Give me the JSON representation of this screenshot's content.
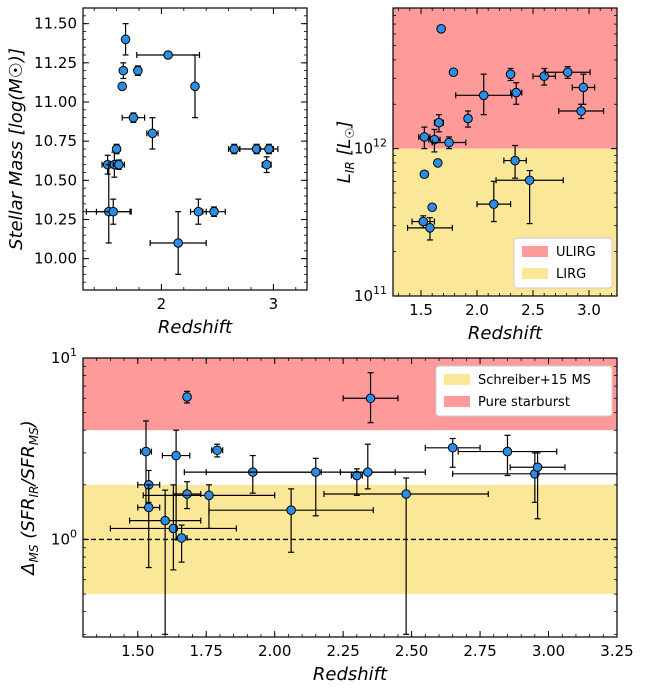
{
  "chart_data": [
    {
      "type": "scatter",
      "xlabel": "Redshift",
      "ylabel": "Stellar Mass [log(M☉)]",
      "xlim": [
        1.3,
        3.3
      ],
      "ylim": [
        9.8,
        11.6
      ],
      "xticks": [
        {
          "v": 2,
          "label": "2"
        },
        {
          "v": 3,
          "label": "3"
        }
      ],
      "yticks": [
        {
          "v": 10.0,
          "label": "10.00"
        },
        {
          "v": 10.25,
          "label": "10.25"
        },
        {
          "v": 10.5,
          "label": "10.50"
        },
        {
          "v": 10.75,
          "label": "10.75"
        },
        {
          "v": 11.0,
          "label": "11.00"
        },
        {
          "v": 11.25,
          "label": "11.25"
        },
        {
          "v": 11.5,
          "label": "11.50"
        }
      ],
      "points": [
        {
          "x": 1.52,
          "y": 10.6,
          "xe": 0.05,
          "yu": 0.06,
          "yd": 0.06
        },
        {
          "x": 1.53,
          "y": 10.3,
          "xe": 0.2,
          "yu": 0.3,
          "yd": 0.2
        },
        {
          "x": 1.57,
          "y": 10.3,
          "xe": 0.15,
          "yu": 0.08,
          "yd": 0.08
        },
        {
          "x": 1.58,
          "y": 10.6,
          "xe": 0.05,
          "yu": 0.08,
          "yd": 0.08
        },
        {
          "x": 1.6,
          "y": 10.7,
          "xe": 0.03,
          "yu": 0.03,
          "yd": 0.03
        },
        {
          "x": 1.62,
          "y": 10.6,
          "xe": 0.05,
          "yu": 0.03,
          "yd": 0.03
        },
        {
          "x": 1.65,
          "y": 11.1,
          "xe": 0.02,
          "yu": 0.02,
          "yd": 0.02
        },
        {
          "x": 1.66,
          "y": 11.2,
          "xe": 0.02,
          "yu": 0.05,
          "yd": 0.05
        },
        {
          "x": 1.68,
          "y": 11.4,
          "xe": 0.02,
          "yu": 0.1,
          "yd": 0.1
        },
        {
          "x": 1.75,
          "y": 10.9,
          "xe": 0.1,
          "yu": 0.03,
          "yd": 0.03
        },
        {
          "x": 1.79,
          "y": 11.2,
          "xe": 0.03,
          "yu": 0.03,
          "yd": 0.03
        },
        {
          "x": 1.92,
          "y": 10.8,
          "xe": 0.05,
          "yu": 0.1,
          "yd": 0.1
        },
        {
          "x": 2.06,
          "y": 11.3,
          "xe": 0.28,
          "yu": 0.02,
          "yd": 0.02
        },
        {
          "x": 2.15,
          "y": 10.1,
          "xe": 0.25,
          "yu": 0.2,
          "yd": 0.2
        },
        {
          "x": 2.3,
          "y": 11.1,
          "xe": 0.01,
          "yu": 0.2,
          "yd": 0.2
        },
        {
          "x": 2.33,
          "y": 10.3,
          "xe": 0.07,
          "yu": 0.08,
          "yd": 0.08
        },
        {
          "x": 2.47,
          "y": 10.3,
          "xe": 0.1,
          "yu": 0.03,
          "yd": 0.03
        },
        {
          "x": 2.65,
          "y": 10.7,
          "xe": 0.05,
          "yu": 0.03,
          "yd": 0.03
        },
        {
          "x": 2.85,
          "y": 10.7,
          "xe": 0.15,
          "yu": 0.03,
          "yd": 0.03
        },
        {
          "x": 2.94,
          "y": 10.6,
          "xe": 0.04,
          "yu": 0.05,
          "yd": 0.05
        },
        {
          "x": 2.96,
          "y": 10.7,
          "xe": 0.08,
          "yu": 0.03,
          "yd": 0.03
        }
      ]
    },
    {
      "type": "scatter",
      "xlabel": "Redshift",
      "ylabel": "L_IR [L☉]",
      "yscale": "log",
      "xlim": [
        1.25,
        3.25
      ],
      "ylim": [
        100000000000.0,
        9000000000000.0
      ],
      "xticks": [
        {
          "v": 1.5,
          "label": "1.5"
        },
        {
          "v": 2.0,
          "label": "2.0"
        },
        {
          "v": 2.5,
          "label": "2.5"
        },
        {
          "v": 3.0,
          "label": "3.0"
        }
      ],
      "yticks": [
        {
          "v": 100000000000.0,
          "base": "10",
          "exp": "11"
        },
        {
          "v": 1000000000000.0,
          "base": "10",
          "exp": "12"
        }
      ],
      "bands": [
        {
          "name": "ULIRG",
          "from": 1000000000000.0,
          "to": 9000000000000.0,
          "color": "#ff9a9a"
        },
        {
          "name": "LIRG",
          "from": 100000000000.0,
          "to": 1000000000000.0,
          "color": "#fbe798"
        }
      ],
      "legend": [
        "ULIRG",
        "LIRG"
      ],
      "points": [
        {
          "x": 1.52,
          "y": 320000000000.0,
          "xe": 0.1,
          "yu": 30000000000.0,
          "yd": 30000000000.0
        },
        {
          "x": 1.53,
          "y": 1200000000000.0,
          "xe": 0.05,
          "yu": 200000000000.0,
          "yd": 200000000000.0
        },
        {
          "x": 1.53,
          "y": 670000000000.0,
          "xe": 0.03,
          "yu": 30000000000.0,
          "yd": 30000000000.0
        },
        {
          "x": 1.58,
          "y": 290000000000.0,
          "xe": 0.2,
          "yu": 50000000000.0,
          "yd": 50000000000.0
        },
        {
          "x": 1.6,
          "y": 400000000000.0,
          "xe": 0.01,
          "yu": 20000000000.0,
          "yd": 20000000000.0
        },
        {
          "x": 1.62,
          "y": 1150000000000.0,
          "xe": 0.05,
          "yu": 200000000000.0,
          "yd": 200000000000.0
        },
        {
          "x": 1.65,
          "y": 800000000000.0,
          "xe": 0.02,
          "yu": 30000000000.0,
          "yd": 30000000000.0
        },
        {
          "x": 1.66,
          "y": 1500000000000.0,
          "xe": 0.04,
          "yu": 200000000000.0,
          "yd": 200000000000.0
        },
        {
          "x": 1.68,
          "y": 6500000000000.0,
          "xe": 0.01,
          "yu": 100000000000.0,
          "yd": 100000000000.0
        },
        {
          "x": 1.75,
          "y": 1100000000000.0,
          "xe": 0.15,
          "yu": 100000000000.0,
          "yd": 100000000000.0
        },
        {
          "x": 1.79,
          "y": 3300000000000.0,
          "xe": 0.02,
          "yu": 100000000000.0,
          "yd": 100000000000.0
        },
        {
          "x": 1.92,
          "y": 1600000000000.0,
          "xe": 0.02,
          "yu": 200000000000.0,
          "yd": 200000000000.0
        },
        {
          "x": 2.06,
          "y": 2300000000000.0,
          "xe": 0.25,
          "yu": 900000000000.0,
          "yd": 600000000000.0
        },
        {
          "x": 2.15,
          "y": 420000000000.0,
          "xe": 0.15,
          "yu": 180000000000.0,
          "yd": 100000000000.0
        },
        {
          "x": 2.3,
          "y": 3200000000000.0,
          "xe": 0.02,
          "yu": 300000000000.0,
          "yd": 300000000000.0
        },
        {
          "x": 2.34,
          "y": 830000000000.0,
          "xe": 0.1,
          "yu": 220000000000.0,
          "yd": 200000000000.0
        },
        {
          "x": 2.35,
          "y": 2400000000000.0,
          "xe": 0.05,
          "yu": 400000000000.0,
          "yd": 400000000000.0
        },
        {
          "x": 2.47,
          "y": 610000000000.0,
          "xe": 0.3,
          "yu": 100000000000.0,
          "yd": 300000000000.0
        },
        {
          "x": 2.6,
          "y": 3100000000000.0,
          "xe": 0.1,
          "yu": 400000000000.0,
          "yd": 400000000000.0
        },
        {
          "x": 2.81,
          "y": 3300000000000.0,
          "xe": 0.2,
          "yu": 300000000000.0,
          "yd": 300000000000.0
        },
        {
          "x": 2.93,
          "y": 1800000000000.0,
          "xe": 0.2,
          "yu": 200000000000.0,
          "yd": 200000000000.0
        },
        {
          "x": 2.95,
          "y": 2600000000000.0,
          "xe": 0.1,
          "yu": 600000000000.0,
          "yd": 600000000000.0
        }
      ]
    },
    {
      "type": "scatter",
      "xlabel": "Redshift",
      "ylabel": "Δ_MS (SFR_IR/SFR_MS)",
      "yscale": "log",
      "xlim": [
        1.3,
        3.25
      ],
      "ylim": [
        0.29,
        10
      ],
      "xticks": [
        {
          "v": 1.5,
          "label": "1.50"
        },
        {
          "v": 1.75,
          "label": "1.75"
        },
        {
          "v": 2.0,
          "label": "2.00"
        },
        {
          "v": 2.25,
          "label": "2.25"
        },
        {
          "v": 2.5,
          "label": "2.50"
        },
        {
          "v": 2.75,
          "label": "2.75"
        },
        {
          "v": 3.0,
          "label": "3.00"
        },
        {
          "v": 3.25,
          "label": "3.25"
        }
      ],
      "yticks": [
        {
          "v": 1,
          "base": "10",
          "exp": "0"
        },
        {
          "v": 10,
          "base": "10",
          "exp": "1"
        }
      ],
      "bands": [
        {
          "name": "Pure starburst",
          "from": 4,
          "to": 10,
          "color": "#ff9a9a"
        },
        {
          "name": "Schreiber+15 MS",
          "from": 0.5,
          "to": 2,
          "color": "#fbe798"
        }
      ],
      "reference_line": 1,
      "legend": [
        "Schreiber+15 MS",
        "Pure starburst"
      ],
      "points": [
        {
          "x": 1.53,
          "y": 3.05,
          "xe": 0.02,
          "yu": 1.45,
          "yd": 1.55
        },
        {
          "x": 1.54,
          "y": 2.0,
          "xe": 0.04,
          "yu": 0.4,
          "yd": 0.4
        },
        {
          "x": 1.54,
          "y": 1.5,
          "xe": 0.04,
          "yu": 0.5,
          "yd": 0.8
        },
        {
          "x": 1.6,
          "y": 1.27,
          "xe": 0.13,
          "yu": 0.6,
          "yd": 0.97
        },
        {
          "x": 1.63,
          "y": 1.15,
          "xe": 0.23,
          "yu": 0.85,
          "yd": 0.47
        },
        {
          "x": 1.64,
          "y": 2.9,
          "xe": 0.05,
          "yu": 1.1,
          "yd": 1.9
        },
        {
          "x": 1.66,
          "y": 1.02,
          "xe": 0.02,
          "yu": 0.18,
          "yd": 0.27
        },
        {
          "x": 1.68,
          "y": 6.1,
          "xe": 0.01,
          "yu": 0.45,
          "yd": 0.45
        },
        {
          "x": 1.68,
          "y": 1.78,
          "xe": 0.05,
          "yu": 0.3,
          "yd": 0.3
        },
        {
          "x": 1.76,
          "y": 1.75,
          "xe": 0.24,
          "yu": 0.25,
          "yd": 0.6
        },
        {
          "x": 1.79,
          "y": 3.1,
          "xe": 0.02,
          "yu": 0.25,
          "yd": 0.25
        },
        {
          "x": 1.92,
          "y": 2.35,
          "xe": 0.25,
          "yu": 0.55,
          "yd": 0.55
        },
        {
          "x": 2.06,
          "y": 1.45,
          "xe": 0.3,
          "yu": 0.45,
          "yd": 0.6
        },
        {
          "x": 2.15,
          "y": 2.35,
          "xe": 0.4,
          "yu": 0.45,
          "yd": 1.0
        },
        {
          "x": 2.3,
          "y": 2.25,
          "xe": 0.02,
          "yu": 0.2,
          "yd": 0.5
        },
        {
          "x": 2.34,
          "y": 2.35,
          "xe": 0.1,
          "yu": 1.0,
          "yd": 0.45
        },
        {
          "x": 2.35,
          "y": 6.0,
          "xe": 0.1,
          "yu": 2.3,
          "yd": 1.6
        },
        {
          "x": 2.48,
          "y": 1.78,
          "xe": 0.3,
          "yu": 0.4,
          "yd": 1.48
        },
        {
          "x": 2.65,
          "y": 3.2,
          "xe": 0.1,
          "yu": 0.4,
          "yd": 0.7
        },
        {
          "x": 2.85,
          "y": 3.05,
          "xe": 0.18,
          "yu": 0.7,
          "yd": 0.8
        },
        {
          "x": 2.95,
          "y": 2.3,
          "xe": 0.3,
          "yu": 0.7,
          "yd": 0.7
        },
        {
          "x": 2.96,
          "y": 2.5,
          "xe": 0.1,
          "yu": 0.5,
          "yd": 1.2
        }
      ]
    }
  ],
  "colors": {
    "marker": "#2b8ee6",
    "marker_edge": "#000000",
    "ulirg": "#ff9a9a",
    "lirg": "#fbe798"
  }
}
